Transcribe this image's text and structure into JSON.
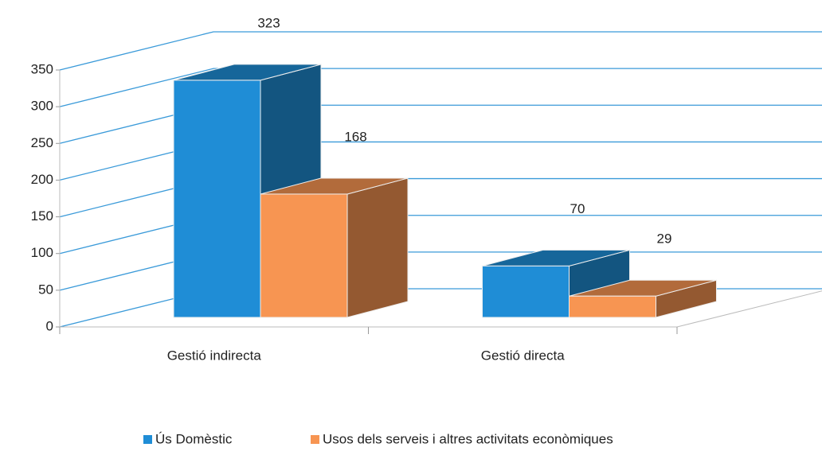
{
  "chart_data": {
    "type": "bar3d",
    "categories": [
      "Gestió indirecta",
      "Gestió directa"
    ],
    "series": [
      {
        "name": "Ús Domèstic",
        "color": "#1f8dd6",
        "values": [
          323,
          70
        ]
      },
      {
        "name": "Usos dels serveis i altres activitats econòmiques",
        "color": "#f79552",
        "values": [
          168,
          29
        ]
      }
    ],
    "ylim": [
      0,
      350
    ],
    "yticks": [
      0,
      50,
      100,
      150,
      200,
      250,
      300,
      350
    ],
    "grid": true,
    "legend": "bottom"
  }
}
